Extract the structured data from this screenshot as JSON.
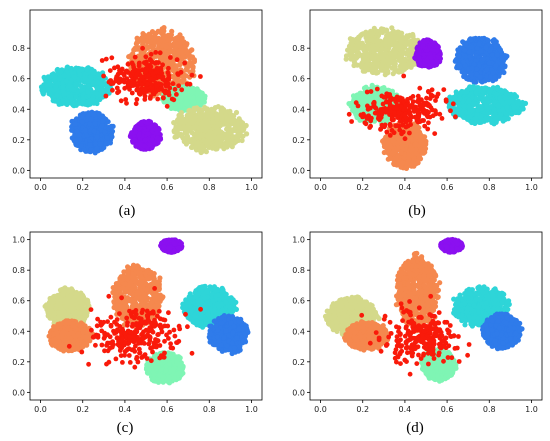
{
  "captions": [
    "(a)",
    "(b)",
    "(c)",
    "(d)"
  ],
  "colors": {
    "violet": "#8B10F0",
    "blue": "#2F7BEA",
    "cyan": "#2ED5D8",
    "aquamarine": "#7FF5B4",
    "olive": "#D4D98A",
    "orange": "#F5884E",
    "red": "#F91A0A"
  },
  "chart_data": [
    {
      "type": "scatter",
      "panel": "(a)",
      "xlim": [
        -0.05,
        1.05
      ],
      "ylim": [
        -0.05,
        1.05
      ],
      "xticks": [
        "0.0",
        "0.2",
        "0.4",
        "0.6",
        "0.8",
        "1.0"
      ],
      "yticks": [
        "0.0",
        "0.2",
        "0.4",
        "0.6",
        "0.8"
      ],
      "grid": false,
      "clusters": [
        {
          "color": "orange",
          "cx": 0.57,
          "cy": 0.7,
          "rx": 0.16,
          "ry": 0.22
        },
        {
          "color": "cyan",
          "cx": 0.17,
          "cy": 0.55,
          "rx": 0.16,
          "ry": 0.13
        },
        {
          "color": "aquamarine",
          "cx": 0.68,
          "cy": 0.47,
          "rx": 0.1,
          "ry": 0.08
        },
        {
          "color": "blue",
          "cx": 0.24,
          "cy": 0.25,
          "rx": 0.1,
          "ry": 0.13
        },
        {
          "color": "violet",
          "cx": 0.5,
          "cy": 0.23,
          "rx": 0.07,
          "ry": 0.09
        },
        {
          "color": "olive",
          "cx": 0.8,
          "cy": 0.27,
          "rx": 0.17,
          "ry": 0.15
        },
        {
          "color": "red",
          "cx": 0.5,
          "cy": 0.6,
          "rx": 0.17,
          "ry": 0.12
        }
      ]
    },
    {
      "type": "scatter",
      "panel": "(b)",
      "xlim": [
        -0.05,
        1.05
      ],
      "ylim": [
        -0.05,
        1.05
      ],
      "xticks": [
        "0.0",
        "0.2",
        "0.4",
        "0.6",
        "0.8",
        "1.0"
      ],
      "yticks": [
        "0.0",
        "0.2",
        "0.4",
        "0.6",
        "0.8"
      ],
      "grid": false,
      "clusters": [
        {
          "color": "olive",
          "cx": 0.3,
          "cy": 0.78,
          "rx": 0.18,
          "ry": 0.15
        },
        {
          "color": "violet",
          "cx": 0.51,
          "cy": 0.76,
          "rx": 0.06,
          "ry": 0.09
        },
        {
          "color": "blue",
          "cx": 0.76,
          "cy": 0.72,
          "rx": 0.12,
          "ry": 0.15
        },
        {
          "color": "cyan",
          "cx": 0.78,
          "cy": 0.43,
          "rx": 0.18,
          "ry": 0.12
        },
        {
          "color": "aquamarine",
          "cx": 0.26,
          "cy": 0.43,
          "rx": 0.12,
          "ry": 0.12
        },
        {
          "color": "orange",
          "cx": 0.4,
          "cy": 0.17,
          "rx": 0.1,
          "ry": 0.15
        },
        {
          "color": "red",
          "cx": 0.38,
          "cy": 0.39,
          "rx": 0.18,
          "ry": 0.12
        }
      ]
    },
    {
      "type": "scatter",
      "panel": "(c)",
      "xlim": [
        -0.05,
        1.05
      ],
      "ylim": [
        -0.05,
        1.05
      ],
      "xticks": [
        "0.0",
        "0.2",
        "0.4",
        "0.6",
        "0.8",
        "1.0"
      ],
      "yticks": [
        "0.0",
        "0.2",
        "0.4",
        "0.6",
        "0.8",
        "1.0"
      ],
      "grid": false,
      "clusters": [
        {
          "color": "violet",
          "cx": 0.62,
          "cy": 0.96,
          "rx": 0.05,
          "ry": 0.04
        },
        {
          "color": "olive",
          "cx": 0.13,
          "cy": 0.55,
          "rx": 0.1,
          "ry": 0.13
        },
        {
          "color": "orange",
          "cx": 0.14,
          "cy": 0.37,
          "rx": 0.1,
          "ry": 0.1
        },
        {
          "color": "orange",
          "cx": 0.46,
          "cy": 0.63,
          "rx": 0.12,
          "ry": 0.2
        },
        {
          "color": "cyan",
          "cx": 0.8,
          "cy": 0.56,
          "rx": 0.12,
          "ry": 0.13
        },
        {
          "color": "blue",
          "cx": 0.89,
          "cy": 0.38,
          "rx": 0.09,
          "ry": 0.12
        },
        {
          "color": "aquamarine",
          "cx": 0.59,
          "cy": 0.16,
          "rx": 0.09,
          "ry": 0.1
        },
        {
          "color": "red",
          "cx": 0.45,
          "cy": 0.38,
          "rx": 0.2,
          "ry": 0.17
        }
      ]
    },
    {
      "type": "scatter",
      "panel": "(d)",
      "xlim": [
        -0.05,
        1.05
      ],
      "ylim": [
        -0.05,
        1.05
      ],
      "xticks": [
        "0.0",
        "0.2",
        "0.4",
        "0.6",
        "0.8",
        "1.0"
      ],
      "yticks": [
        "0.0",
        "0.2",
        "0.4",
        "0.6",
        "0.8",
        "1.0"
      ],
      "grid": false,
      "clusters": [
        {
          "color": "violet",
          "cx": 0.62,
          "cy": 0.96,
          "rx": 0.05,
          "ry": 0.04
        },
        {
          "color": "olive",
          "cx": 0.15,
          "cy": 0.5,
          "rx": 0.12,
          "ry": 0.12
        },
        {
          "color": "orange",
          "cx": 0.22,
          "cy": 0.37,
          "rx": 0.1,
          "ry": 0.09
        },
        {
          "color": "orange",
          "cx": 0.46,
          "cy": 0.66,
          "rx": 0.1,
          "ry": 0.24
        },
        {
          "color": "cyan",
          "cx": 0.76,
          "cy": 0.56,
          "rx": 0.13,
          "ry": 0.13
        },
        {
          "color": "blue",
          "cx": 0.86,
          "cy": 0.4,
          "rx": 0.09,
          "ry": 0.11
        },
        {
          "color": "aquamarine",
          "cx": 0.56,
          "cy": 0.18,
          "rx": 0.08,
          "ry": 0.1
        },
        {
          "color": "red",
          "cx": 0.48,
          "cy": 0.36,
          "rx": 0.16,
          "ry": 0.15
        }
      ]
    }
  ]
}
